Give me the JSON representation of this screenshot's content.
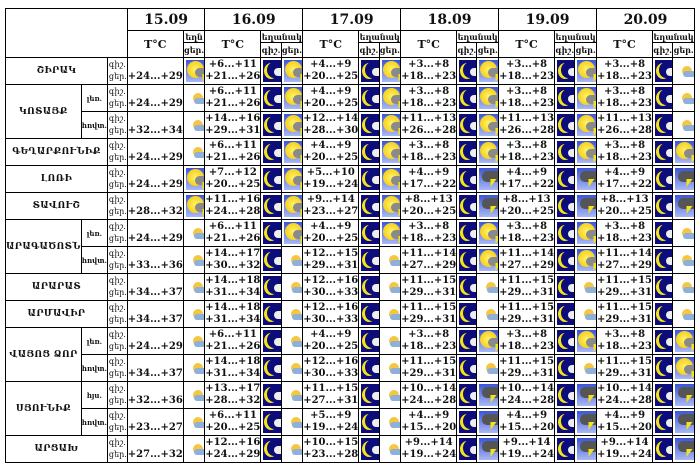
{
  "header": {
    "dates": [
      "15.09",
      "16.09",
      "17.09",
      "18.09",
      "19.09",
      "20.09"
    ],
    "temp_label": "T°C",
    "weather_label_short": "եղն",
    "weather_label": "եղանակ",
    "night_label": "գիշ.",
    "day_label": "ցեր."
  },
  "rows": [
    {
      "region": "ՇԻՐԱԿ",
      "sub": "",
      "d15": {
        "t": "+24...+29",
        "i": "sun-storm"
      },
      "days": [
        {
          "n": "+6...+11",
          "d": "+21...+26",
          "di": "sun-storm"
        },
        {
          "n": "+4...+9",
          "d": "+20...+25",
          "di": "sun-storm"
        },
        {
          "n": "+3...+8",
          "d": "+18...+23",
          "di": "sun-storm"
        },
        {
          "n": "+3...+8",
          "d": "+18...+23",
          "di": "sun-storm"
        },
        {
          "n": "+3...+8",
          "d": "+18...+23",
          "di": "partly-cloudy"
        }
      ]
    },
    {
      "region": "ԿՈՏԱՅՔ",
      "sub": "լեռ.",
      "d15": {
        "t": "+24...+29",
        "i": "partly-cloudy"
      },
      "days": [
        {
          "n": "+6...+11",
          "d": "+21...+26",
          "di": "sun-storm"
        },
        {
          "n": "+4...+9",
          "d": "+20...+25",
          "di": "sun-storm"
        },
        {
          "n": "+3...+8",
          "d": "+18...+23",
          "di": "sun-storm"
        },
        {
          "n": "+3...+8",
          "d": "+18...+23",
          "di": "sun-storm"
        },
        {
          "n": "+3...+8",
          "d": "+18...+23",
          "di": "partly-cloudy"
        }
      ]
    },
    {
      "region": "ԿՈՏԱՅՔ",
      "sub": "հովտ.",
      "d15": {
        "t": "+32...+34",
        "i": "partly-cloudy"
      },
      "days": [
        {
          "n": "+14...+16",
          "d": "+29...+31",
          "di": "sun-storm"
        },
        {
          "n": "+12...+14",
          "d": "+28...+30",
          "di": "sun-storm"
        },
        {
          "n": "+11...+13",
          "d": "+26...+28",
          "di": "sun-storm"
        },
        {
          "n": "+11...+13",
          "d": "+26...+28",
          "di": "sun-storm"
        },
        {
          "n": "+11...+13",
          "d": "+26...+28",
          "di": "partly-cloudy"
        }
      ]
    },
    {
      "region": "ԳԵՂԱՐՔՈՒՆԻՔ",
      "sub": "",
      "d15": {
        "t": "+24...+29",
        "i": "partly-cloudy"
      },
      "days": [
        {
          "n": "+6...+11",
          "d": "+21...+26",
          "di": "sun-storm"
        },
        {
          "n": "+4...+9",
          "d": "+20...+25",
          "di": "sun-storm"
        },
        {
          "n": "+3...+8",
          "d": "+18...+23",
          "di": "sun-storm"
        },
        {
          "n": "+3...+8",
          "d": "+18...+23",
          "di": "sun-storm"
        },
        {
          "n": "+3...+8",
          "d": "+18...+23",
          "di": "sun-storm"
        }
      ]
    },
    {
      "region": "ԼՈՌԻ",
      "sub": "",
      "d15": {
        "t": "+24...+29",
        "i": "sun-storm"
      },
      "days": [
        {
          "n": "+7...+12",
          "d": "+20...+25",
          "di": "sun-storm"
        },
        {
          "n": "+5...+10",
          "d": "+19...+24",
          "di": "sun-storm"
        },
        {
          "n": "+4...+9",
          "d": "+17...+22",
          "di": "thunderstorm"
        },
        {
          "n": "+4...+9",
          "d": "+17...+22",
          "di": "thunderstorm"
        },
        {
          "n": "+4...+9",
          "d": "+17...+22",
          "di": "thunderstorm"
        }
      ]
    },
    {
      "region": "ՏԱՎՈՒՇ",
      "sub": "",
      "d15": {
        "t": "+28...+32",
        "i": "sun-storm"
      },
      "days": [
        {
          "n": "+11...+16",
          "d": "+24...+28",
          "di": "sun-storm"
        },
        {
          "n": "+9...+14",
          "d": "+23...+27",
          "di": "sun-storm"
        },
        {
          "n": "+8...+13",
          "d": "+20...+25",
          "di": "thunderstorm"
        },
        {
          "n": "+8...+13",
          "d": "+20...+25",
          "di": "thunderstorm"
        },
        {
          "n": "+8...+13",
          "d": "+20...+25",
          "di": "thunderstorm"
        }
      ]
    },
    {
      "region": "ԱՐԱԳԱԾՈՏՆ",
      "sub": "լեռ.",
      "d15": {
        "t": "+24...+29",
        "i": "partly-cloudy"
      },
      "days": [
        {
          "n": "+6...+11",
          "d": "+21...+26",
          "di": "sun-storm"
        },
        {
          "n": "+4...+9",
          "d": "+20...+25",
          "di": "sun-storm"
        },
        {
          "n": "+3...+8",
          "d": "+18...+23",
          "di": "sun-storm"
        },
        {
          "n": "+3...+8",
          "d": "+18...+23",
          "di": "sun-storm"
        },
        {
          "n": "+3...+8",
          "d": "+18...+23",
          "di": "partly-cloudy"
        }
      ]
    },
    {
      "region": "ԱՐԱԳԱԾՈՏՆ",
      "sub": "հովտ.",
      "d15": {
        "t": "+33...+36",
        "i": "partly-cloudy"
      },
      "days": [
        {
          "n": "+14...+17",
          "d": "+30...+32",
          "di": "partly-cloudy"
        },
        {
          "n": "+12...+15",
          "d": "+29...+31",
          "di": "partly-cloudy"
        },
        {
          "n": "+11...+14",
          "d": "+27...+29",
          "di": "sun-storm"
        },
        {
          "n": "+11...+14",
          "d": "+27...+29",
          "di": "sun-storm"
        },
        {
          "n": "+11...+14",
          "d": "+27...+29",
          "di": "partly-cloudy"
        }
      ]
    },
    {
      "region": "ԱՐԱՐԱՏ",
      "sub": "",
      "d15": {
        "t": "+34...+37",
        "i": "partly-cloudy"
      },
      "days": [
        {
          "n": "+14...+18",
          "d": "+31...+34",
          "di": "partly-cloudy"
        },
        {
          "n": "+12...+16",
          "d": "+30...+33",
          "di": "partly-cloudy"
        },
        {
          "n": "+11...+15",
          "d": "+29...+31",
          "di": "partly-cloudy"
        },
        {
          "n": "+11...+15",
          "d": "+29...+31",
          "di": "partly-cloudy"
        },
        {
          "n": "+11...+15",
          "d": "+29...+31",
          "di": "partly-cloudy"
        }
      ]
    },
    {
      "region": "ԱՐՄԱՎԻՐ",
      "sub": "",
      "d15": {
        "t": "+34...+37",
        "i": "partly-cloudy"
      },
      "days": [
        {
          "n": "+14...+18",
          "d": "+31...+34",
          "di": "partly-cloudy"
        },
        {
          "n": "+12...+16",
          "d": "+30...+33",
          "di": "partly-cloudy"
        },
        {
          "n": "+11...+15",
          "d": "+29...+31",
          "di": "partly-cloudy"
        },
        {
          "n": "+11...+15",
          "d": "+29...+31",
          "di": "partly-cloudy"
        },
        {
          "n": "+11...+15",
          "d": "+29...+31",
          "di": "partly-cloudy"
        }
      ]
    },
    {
      "region": "ՎԱՅՈՑ ՁՈՐ",
      "sub": "լեռ.",
      "d15": {
        "t": "+24...+29",
        "i": "partly-cloudy"
      },
      "days": [
        {
          "n": "+6...+11",
          "d": "+21...+26",
          "di": "partly-cloudy"
        },
        {
          "n": "+4...+9",
          "d": "+20...+25",
          "di": "partly-cloudy"
        },
        {
          "n": "+3...+8",
          "d": "+18...+23",
          "di": "sun-storm"
        },
        {
          "n": "+3...+8",
          "d": "+18...+23",
          "di": "sun-storm"
        },
        {
          "n": "+3...+8",
          "d": "+18...+23",
          "di": "sun-storm"
        }
      ]
    },
    {
      "region": "ՎԱՅՈՑ ՁՈՐ",
      "sub": "հովտ.",
      "d15": {
        "t": "+34...+37",
        "i": "partly-cloudy"
      },
      "days": [
        {
          "n": "+14...+18",
          "d": "+31...+34",
          "di": "partly-cloudy"
        },
        {
          "n": "+12...+16",
          "d": "+30...+33",
          "di": "partly-cloudy"
        },
        {
          "n": "+11...+15",
          "d": "+29...+31",
          "di": "partly-cloudy"
        },
        {
          "n": "+11...+15",
          "d": "+29...+31",
          "di": "partly-cloudy"
        },
        {
          "n": "+11...+15",
          "d": "+29...+31",
          "di": "sun-storm"
        }
      ]
    },
    {
      "region": "ՍՅՈՒՆԻՔ",
      "sub": "հյս.",
      "d15": {
        "t": "+32...+36",
        "i": "partly-cloudy"
      },
      "days": [
        {
          "n": "+13...+17",
          "d": "+28...+32",
          "di": "partly-cloudy"
        },
        {
          "n": "+11...+15",
          "d": "+27...+31",
          "di": "partly-cloudy"
        },
        {
          "n": "+10...+14",
          "d": "+24...+28",
          "di": "thunderstorm"
        },
        {
          "n": "+10...+14",
          "d": "+24...+28",
          "di": "thunderstorm"
        },
        {
          "n": "+10...+14",
          "d": "+24...+28",
          "di": "thunderstorm"
        }
      ]
    },
    {
      "region": "ՍՅՈՒՆԻՔ",
      "sub": "հովտ.",
      "d15": {
        "t": "+23...+27",
        "i": "partly-cloudy"
      },
      "days": [
        {
          "n": "+6...+11",
          "d": "+20...+25",
          "di": "partly-cloudy"
        },
        {
          "n": "+5...+9",
          "d": "+19...+24",
          "di": "partly-cloudy"
        },
        {
          "n": "+4...+9",
          "d": "+15...+20",
          "di": "thunderstorm"
        },
        {
          "n": "+4...+9",
          "d": "+15...+20",
          "di": "thunderstorm"
        },
        {
          "n": "+4...+9",
          "d": "+15...+20",
          "di": "thunderstorm"
        }
      ]
    },
    {
      "region": "ԱՐՑԱԽ",
      "sub": "",
      "d15": {
        "t": "+27...+32",
        "i": "partly-cloudy"
      },
      "days": [
        {
          "n": "+12...+16",
          "d": "+24...+29",
          "di": "partly-cloudy"
        },
        {
          "n": "+10...+15",
          "d": "+23...+28",
          "di": "partly-cloudy"
        },
        {
          "n": "+9...+14",
          "d": "+19...+24",
          "di": "thunderstorm"
        },
        {
          "n": "+9...+14",
          "d": "+19...+24",
          "di": "thunderstorm"
        },
        {
          "n": "+9...+14",
          "d": "+19...+24",
          "di": "thunderstorm"
        }
      ]
    }
  ],
  "night_icon": "moon-cloud"
}
